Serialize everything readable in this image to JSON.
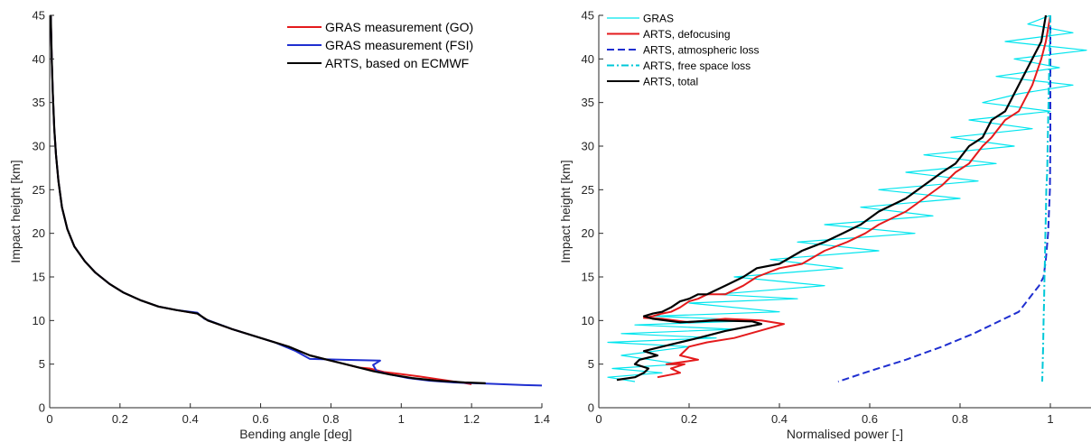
{
  "chart_data": [
    {
      "type": "line",
      "xlabel": "Bending angle [deg]",
      "ylabel": "Impact height [km]",
      "xlim": [
        0,
        1.4
      ],
      "ylim": [
        0,
        45
      ],
      "xticks": [
        "0",
        "0.2",
        "0.4",
        "0.6",
        "0.8",
        "1",
        "1.2",
        "1.4"
      ],
      "yticks": [
        "0",
        "5",
        "10",
        "15",
        "20",
        "25",
        "30",
        "35",
        "40",
        "45"
      ],
      "grid": false,
      "legend": "top-right",
      "series": [
        {
          "name": "GRAS measurement (GO)",
          "color": "#e41a1c",
          "style": "solid",
          "x": [
            0.003,
            0.006,
            0.009,
            0.013,
            0.018,
            0.025,
            0.035,
            0.05,
            0.07,
            0.1,
            0.13,
            0.17,
            0.21,
            0.26,
            0.31,
            0.36,
            0.42,
            0.45,
            0.52,
            0.6,
            0.68,
            0.74,
            0.8,
            0.85,
            0.88,
            0.91,
            0.93,
            0.95,
            0.99,
            1.05,
            1.1,
            1.15,
            1.17,
            1.2
          ],
          "y": [
            45,
            40,
            36,
            32,
            29,
            26,
            23,
            20.5,
            18.5,
            16.8,
            15.5,
            14.2,
            13.2,
            12.3,
            11.6,
            11.2,
            10.8,
            10.0,
            9.0,
            8.0,
            7.0,
            6.0,
            5.4,
            4.9,
            4.6,
            4.5,
            4.3,
            4.1,
            3.9,
            3.6,
            3.3,
            3.0,
            2.9,
            2.7
          ]
        },
        {
          "name": "GRAS measurement (FSI)",
          "color": "#1f2fd0",
          "style": "solid",
          "x": [
            0.003,
            0.006,
            0.009,
            0.013,
            0.018,
            0.025,
            0.035,
            0.05,
            0.07,
            0.1,
            0.13,
            0.17,
            0.21,
            0.26,
            0.31,
            0.36,
            0.42,
            0.44,
            0.52,
            0.6,
            0.64,
            0.7,
            0.74,
            0.94,
            0.92,
            0.93,
            0.97,
            1.02,
            1.08,
            1.15,
            1.25,
            1.35,
            1.4
          ],
          "y": [
            45,
            40,
            36,
            32,
            29,
            26,
            23,
            20.5,
            18.5,
            16.8,
            15.5,
            14.2,
            13.2,
            12.3,
            11.6,
            11.2,
            10.9,
            10.2,
            9.0,
            8.0,
            7.5,
            6.5,
            5.6,
            5.4,
            4.9,
            4.2,
            3.8,
            3.4,
            3.1,
            2.9,
            2.75,
            2.6,
            2.55
          ]
        },
        {
          "name": "ARTS, based on ECMWF",
          "color": "#000000",
          "style": "solid",
          "x": [
            0.003,
            0.006,
            0.009,
            0.013,
            0.018,
            0.025,
            0.035,
            0.05,
            0.07,
            0.1,
            0.13,
            0.17,
            0.21,
            0.26,
            0.31,
            0.36,
            0.42,
            0.45,
            0.52,
            0.6,
            0.68,
            0.74,
            0.8,
            0.86,
            0.92,
            0.97,
            1.03,
            1.1,
            1.18,
            1.24
          ],
          "y": [
            45,
            40,
            36,
            32,
            29,
            26,
            23,
            20.5,
            18.5,
            16.8,
            15.5,
            14.2,
            13.2,
            12.3,
            11.6,
            11.2,
            10.8,
            10.0,
            9.0,
            8.0,
            7.0,
            6.0,
            5.4,
            4.8,
            4.2,
            3.8,
            3.4,
            3.1,
            2.9,
            2.8
          ]
        }
      ]
    },
    {
      "type": "line",
      "xlabel": "Normalised power [-]",
      "ylabel": "Impact height [km]",
      "xlim": [
        0,
        1.09
      ],
      "ylim": [
        0,
        45
      ],
      "xticks": [
        "0",
        "0.2",
        "0.4",
        "0.6",
        "0.8",
        "1"
      ],
      "yticks": [
        "0",
        "5",
        "10",
        "15",
        "20",
        "25",
        "30",
        "35",
        "40",
        "45"
      ],
      "grid": false,
      "legend": "top-left",
      "series": [
        {
          "name": "GRAS",
          "color": "#00e5ee",
          "style": "solid",
          "x": [
            1.0,
            0.95,
            1.05,
            0.9,
            1.08,
            0.92,
            1.02,
            0.88,
            1.05,
            0.93,
            0.85,
            1.0,
            0.82,
            0.96,
            0.78,
            0.92,
            0.72,
            0.88,
            0.68,
            0.84,
            0.62,
            0.8,
            0.58,
            0.74,
            0.5,
            0.7,
            0.44,
            0.62,
            0.38,
            0.54,
            0.3,
            0.5,
            0.26,
            0.44,
            0.2,
            0.4,
            0.12,
            0.36,
            0.08,
            0.3,
            0.05,
            0.26,
            0.02,
            0.2,
            0.05,
            0.18,
            0.03,
            0.14,
            0.02,
            0.08
          ],
          "y": [
            45,
            44,
            43,
            42,
            41,
            40,
            39,
            38,
            37,
            36,
            35,
            34,
            33,
            32,
            31,
            30,
            29,
            28,
            27,
            26,
            25,
            24,
            23,
            22,
            21,
            20,
            19,
            18,
            17,
            16,
            15,
            14,
            13,
            12.5,
            12,
            11,
            10.5,
            10,
            9.5,
            9,
            8.5,
            8,
            7.5,
            7,
            6,
            5,
            4.5,
            4,
            3.5,
            3
          ]
        },
        {
          "name": "ARTS, defocusing",
          "color": "#e41a1c",
          "style": "solid",
          "x": [
            1.0,
            0.99,
            0.98,
            0.96,
            0.93,
            0.9,
            0.87,
            0.85,
            0.82,
            0.79,
            0.76,
            0.72,
            0.68,
            0.62,
            0.59,
            0.55,
            0.5,
            0.45,
            0.4,
            0.35,
            0.32,
            0.28,
            0.24,
            0.22,
            0.2,
            0.18,
            0.16,
            0.14,
            0.12,
            0.1,
            0.14,
            0.2,
            0.28,
            0.36,
            0.41,
            0.3,
            0.24,
            0.2,
            0.18,
            0.22,
            0.15,
            0.19,
            0.16,
            0.18,
            0.16,
            0.13
          ],
          "y": [
            45,
            42,
            40,
            37,
            34,
            33,
            31,
            30,
            28,
            27,
            25.5,
            24,
            22.5,
            21,
            20,
            19,
            18,
            16.5,
            16,
            15,
            14,
            13,
            13,
            12.5,
            12.2,
            11.5,
            11,
            10.8,
            10.5,
            10.3,
            10.2,
            9.8,
            10.2,
            10.0,
            9.6,
            8.0,
            7.5,
            7.0,
            6.0,
            5.5,
            5.0,
            5.0,
            4.5,
            4.0,
            3.8,
            3.5
          ]
        },
        {
          "name": "ARTS, atmospheric loss",
          "color": "#1f2fd0",
          "style": "dashed",
          "x": [
            1.0,
            1.0,
            1.0,
            1.0,
            0.999,
            0.995,
            0.99,
            0.985,
            0.975,
            0.96,
            0.93,
            0.89,
            0.83,
            0.76,
            0.68,
            0.6,
            0.53
          ],
          "y": [
            45,
            40,
            35,
            30,
            25,
            20,
            17,
            15,
            14,
            13,
            11,
            10,
            8.5,
            7,
            5.5,
            4.2,
            3
          ]
        },
        {
          "name": "ARTS, free space loss",
          "color": "#00c8d8",
          "style": "dashdot",
          "x": [
            1.0,
            0.998,
            0.996,
            0.994,
            0.993,
            0.991,
            0.99,
            0.989,
            0.988,
            0.987,
            0.986,
            0.985,
            0.984,
            0.983,
            0.982
          ],
          "y": [
            45,
            40,
            35,
            30,
            27,
            25,
            22,
            20,
            17,
            15,
            12,
            10,
            7,
            5,
            3
          ]
        },
        {
          "name": "ARTS, total",
          "color": "#000000",
          "style": "solid",
          "x": [
            0.99,
            0.98,
            0.96,
            0.93,
            0.9,
            0.87,
            0.85,
            0.82,
            0.79,
            0.76,
            0.72,
            0.68,
            0.62,
            0.58,
            0.54,
            0.5,
            0.45,
            0.4,
            0.35,
            0.32,
            0.28,
            0.24,
            0.22,
            0.2,
            0.18,
            0.16,
            0.14,
            0.12,
            0.1,
            0.12,
            0.18,
            0.26,
            0.34,
            0.36,
            0.28,
            0.22,
            0.18,
            0.14,
            0.1,
            0.13,
            0.09,
            0.08,
            0.11,
            0.1,
            0.08,
            0.04
          ],
          "y": [
            45,
            42,
            40,
            37,
            34,
            33,
            31,
            30,
            28,
            27,
            25.5,
            24,
            22.5,
            21,
            20,
            19,
            18,
            16.5,
            16,
            15,
            14,
            13,
            13,
            12.5,
            12.2,
            11.5,
            11,
            10.8,
            10.5,
            10.2,
            9.8,
            10.0,
            9.9,
            9.6,
            8.8,
            8.0,
            7.5,
            7.0,
            6.5,
            6.0,
            5.5,
            5.0,
            4.5,
            4.0,
            3.5,
            3.2
          ]
        }
      ]
    }
  ]
}
